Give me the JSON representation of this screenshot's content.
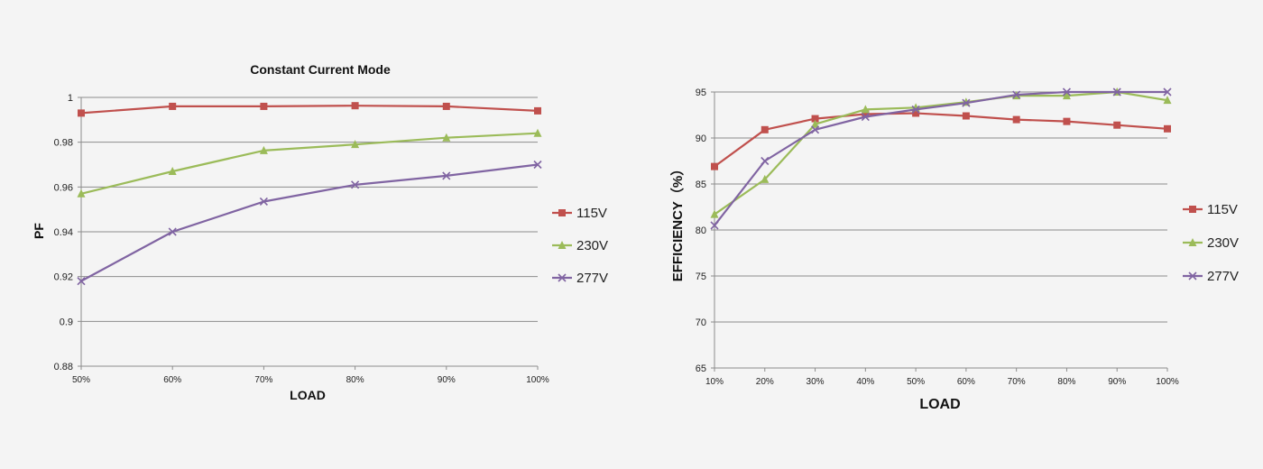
{
  "chart_data": [
    {
      "type": "line",
      "title": "Constant Current Mode",
      "xlabel": "LOAD",
      "ylabel": "PF",
      "categories": [
        "50%",
        "60%",
        "70%",
        "80%",
        "90%",
        "100%"
      ],
      "ylim": [
        0.88,
        1
      ],
      "yticks": [
        "0.88",
        "0.9",
        "0.92",
        "0.94",
        "0.96",
        "0.98",
        "1"
      ],
      "grid": true,
      "legend_position": "right",
      "series": [
        {
          "name": "115V",
          "color": "#c0504d",
          "marker": "square",
          "values": [
            0.993,
            0.996,
            0.996,
            0.9963,
            0.996,
            0.994
          ]
        },
        {
          "name": "230V",
          "color": "#9bbb59",
          "marker": "triangle",
          "values": [
            0.957,
            0.967,
            0.9763,
            0.979,
            0.982,
            0.984
          ]
        },
        {
          "name": "277V",
          "color": "#8064a2",
          "marker": "x",
          "values": [
            0.918,
            0.94,
            0.9535,
            0.961,
            0.965,
            0.97
          ]
        }
      ]
    },
    {
      "type": "line",
      "title": "",
      "xlabel": "LOAD",
      "ylabel": "EFFICIENCY（%）",
      "categories": [
        "10%",
        "20%",
        "30%",
        "40%",
        "50%",
        "60%",
        "70%",
        "80%",
        "90%",
        "100%"
      ],
      "ylim": [
        65,
        95
      ],
      "yticks": [
        "65",
        "70",
        "75",
        "80",
        "85",
        "90",
        "95"
      ],
      "grid": true,
      "legend_position": "right",
      "series": [
        {
          "name": "115V",
          "color": "#c0504d",
          "marker": "square",
          "values": [
            86.9,
            90.9,
            92.1,
            92.6,
            92.7,
            92.4,
            92.0,
            91.8,
            91.4,
            91.0
          ]
        },
        {
          "name": "230V",
          "color": "#9bbb59",
          "marker": "triangle",
          "values": [
            81.7,
            85.5,
            91.5,
            93.1,
            93.3,
            93.9,
            94.6,
            94.6,
            95.0,
            94.1
          ]
        },
        {
          "name": "277V",
          "color": "#8064a2",
          "marker": "x",
          "values": [
            80.5,
            87.5,
            90.9,
            92.3,
            93.1,
            93.8,
            94.7,
            95.0,
            95.0,
            95.0
          ]
        }
      ]
    }
  ]
}
